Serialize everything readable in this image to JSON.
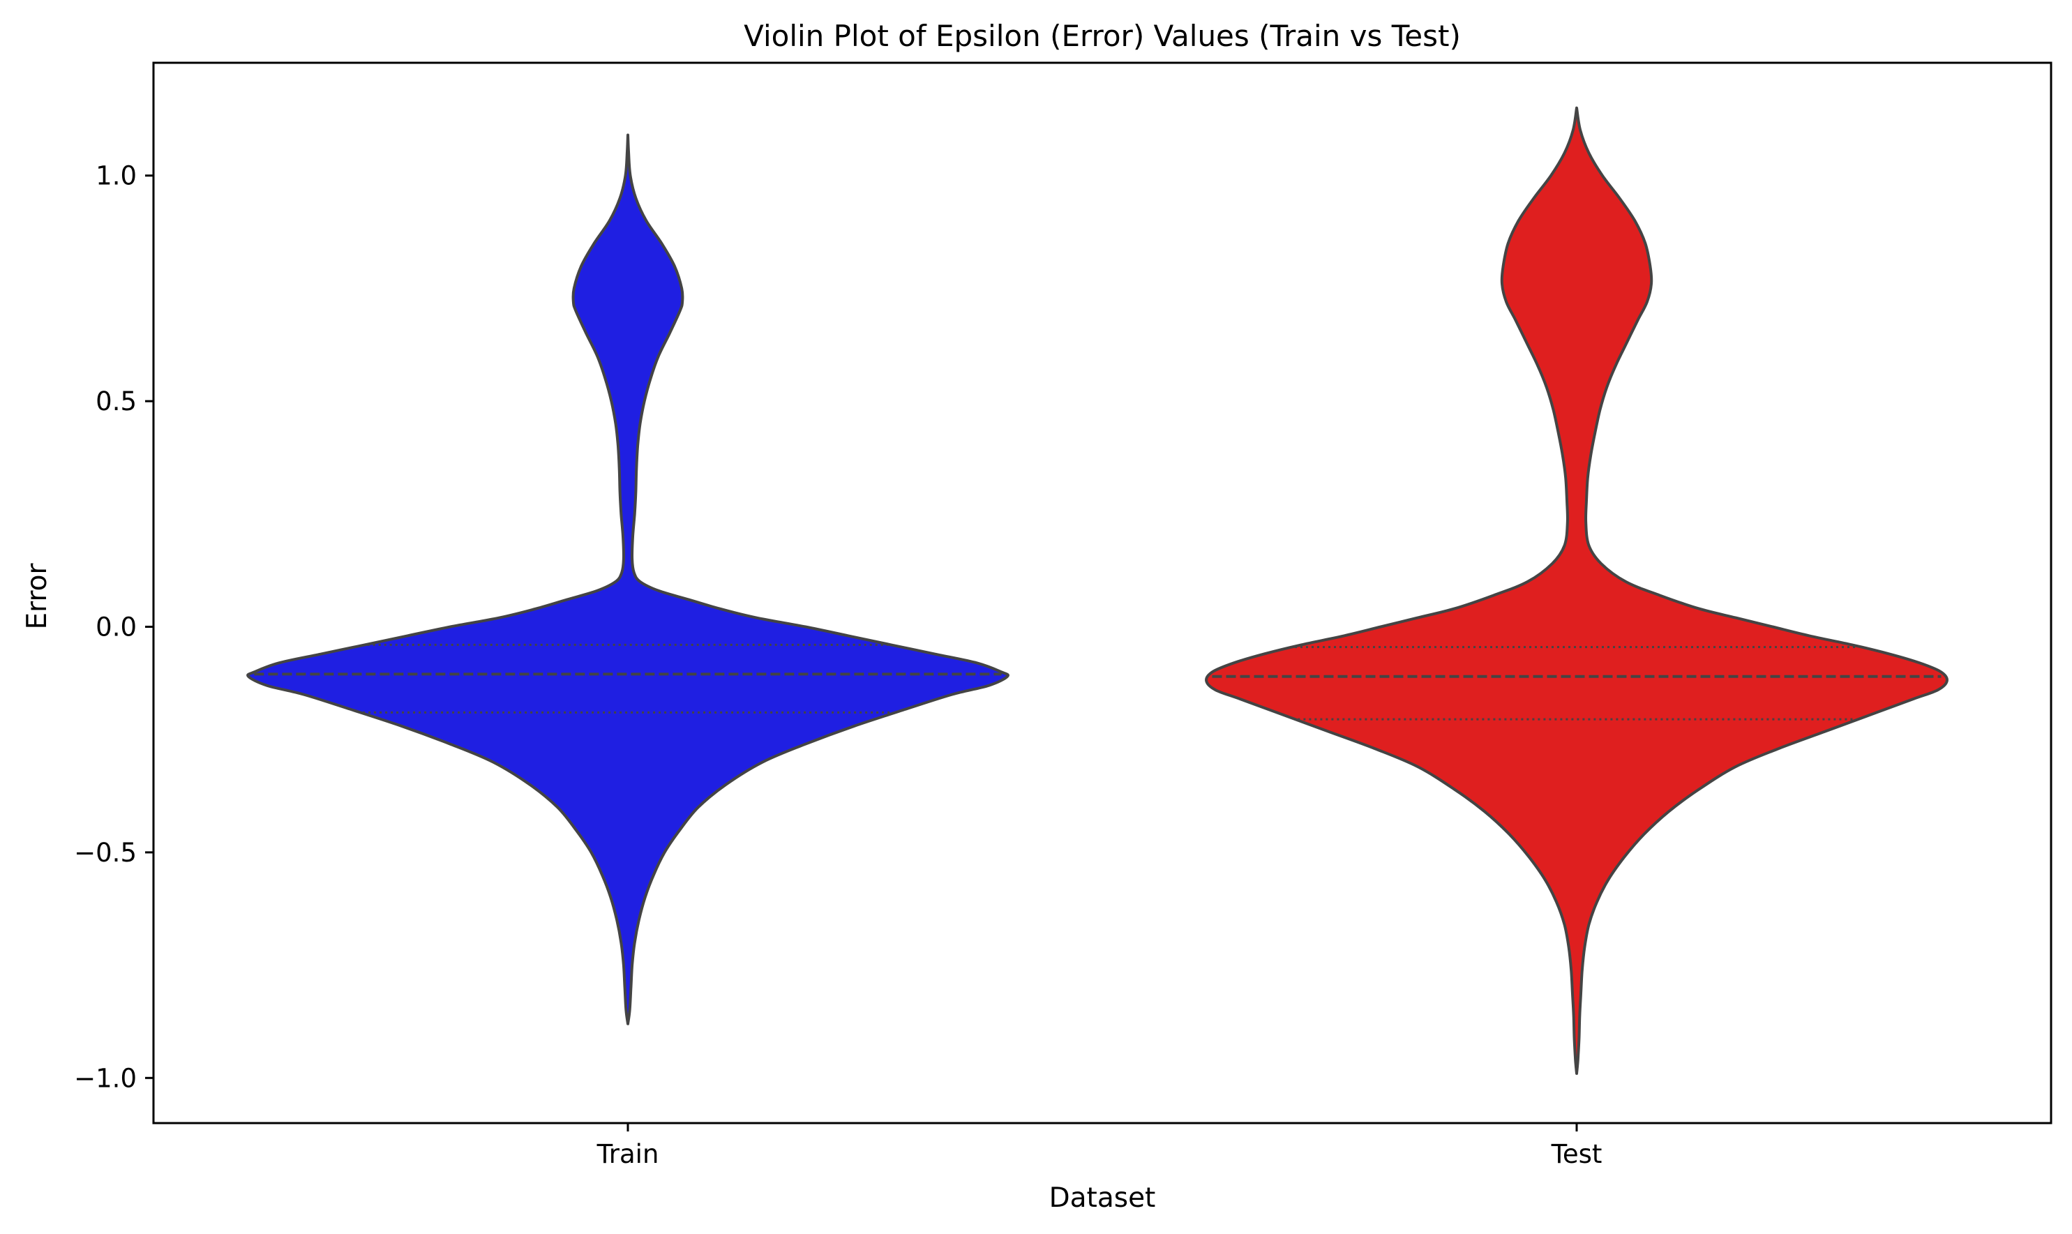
{
  "chart_data": {
    "type": "violin",
    "title": "Violin Plot of Epsilon (Error) Values (Train vs Test)",
    "xlabel": "Dataset",
    "ylabel": "Error",
    "ylim": [
      -1.1,
      1.25
    ],
    "yticks": [
      1.0,
      0.5,
      0.0,
      -0.5,
      -1.0
    ],
    "ytick_labels": [
      "1.0",
      "0.5",
      "0.0",
      "−0.5",
      "−1.0"
    ],
    "categories": [
      "Train",
      "Test"
    ],
    "grid": false,
    "legend": "none",
    "colors": {
      "Train": "#1f1fe2",
      "Test": "#df1f1f",
      "outline": "#444444",
      "inner_lines": "#444444"
    },
    "series": [
      {
        "category": "Train",
        "min": -0.88,
        "max": 1.09,
        "quartiles": [
          -0.19,
          -0.105,
          -0.04
        ],
        "density_profile": [
          [
            1.09,
            0.0
          ],
          [
            1.05,
            0.012
          ],
          [
            1.0,
            0.04
          ],
          [
            0.95,
            0.13
          ],
          [
            0.9,
            0.3
          ],
          [
            0.85,
            0.55
          ],
          [
            0.8,
            0.76
          ],
          [
            0.75,
            0.88
          ],
          [
            0.72,
            0.89
          ],
          [
            0.7,
            0.85
          ],
          [
            0.65,
            0.68
          ],
          [
            0.6,
            0.5
          ],
          [
            0.55,
            0.37
          ],
          [
            0.5,
            0.27
          ],
          [
            0.45,
            0.2
          ],
          [
            0.4,
            0.16
          ],
          [
            0.35,
            0.14
          ],
          [
            0.3,
            0.13
          ],
          [
            0.25,
            0.11
          ],
          [
            0.2,
            0.08
          ],
          [
            0.15,
            0.07
          ],
          [
            0.12,
            0.1
          ],
          [
            0.1,
            0.2
          ],
          [
            0.08,
            0.5
          ],
          [
            0.06,
            1.0
          ],
          [
            0.04,
            1.5
          ],
          [
            0.02,
            2.1
          ],
          [
            0.0,
            2.9
          ],
          [
            -0.02,
            3.6
          ],
          [
            -0.04,
            4.3
          ],
          [
            -0.06,
            5.0
          ],
          [
            -0.08,
            5.7
          ],
          [
            -0.1,
            6.1
          ],
          [
            -0.11,
            6.2
          ],
          [
            -0.13,
            5.9
          ],
          [
            -0.15,
            5.3
          ],
          [
            -0.18,
            4.6
          ],
          [
            -0.22,
            3.7
          ],
          [
            -0.26,
            2.9
          ],
          [
            -0.3,
            2.2
          ],
          [
            -0.35,
            1.6
          ],
          [
            -0.4,
            1.15
          ],
          [
            -0.45,
            0.85
          ],
          [
            -0.5,
            0.6
          ],
          [
            -0.55,
            0.42
          ],
          [
            -0.6,
            0.28
          ],
          [
            -0.65,
            0.18
          ],
          [
            -0.7,
            0.11
          ],
          [
            -0.75,
            0.07
          ],
          [
            -0.8,
            0.05
          ],
          [
            -0.85,
            0.03
          ],
          [
            -0.88,
            0.0
          ]
        ]
      },
      {
        "category": "Test",
        "min": -0.99,
        "max": 1.15,
        "quartiles": [
          -0.205,
          -0.11,
          -0.045
        ],
        "density_profile": [
          [
            1.15,
            0.0
          ],
          [
            1.1,
            0.06
          ],
          [
            1.05,
            0.2
          ],
          [
            1.0,
            0.42
          ],
          [
            0.95,
            0.7
          ],
          [
            0.9,
            0.95
          ],
          [
            0.85,
            1.12
          ],
          [
            0.8,
            1.2
          ],
          [
            0.76,
            1.22
          ],
          [
            0.72,
            1.15
          ],
          [
            0.68,
            1.0
          ],
          [
            0.63,
            0.82
          ],
          [
            0.58,
            0.64
          ],
          [
            0.53,
            0.49
          ],
          [
            0.48,
            0.38
          ],
          [
            0.43,
            0.3
          ],
          [
            0.38,
            0.23
          ],
          [
            0.33,
            0.18
          ],
          [
            0.28,
            0.16
          ],
          [
            0.23,
            0.15
          ],
          [
            0.18,
            0.2
          ],
          [
            0.14,
            0.4
          ],
          [
            0.1,
            0.8
          ],
          [
            0.07,
            1.35
          ],
          [
            0.04,
            2.0
          ],
          [
            0.02,
            2.6
          ],
          [
            0.0,
            3.2
          ],
          [
            -0.02,
            3.8
          ],
          [
            -0.04,
            4.5
          ],
          [
            -0.06,
            5.1
          ],
          [
            -0.08,
            5.6
          ],
          [
            -0.1,
            5.95
          ],
          [
            -0.12,
            6.05
          ],
          [
            -0.14,
            5.9
          ],
          [
            -0.16,
            5.5
          ],
          [
            -0.19,
            4.9
          ],
          [
            -0.23,
            4.1
          ],
          [
            -0.27,
            3.3
          ],
          [
            -0.31,
            2.6
          ],
          [
            -0.36,
            2.0
          ],
          [
            -0.41,
            1.5
          ],
          [
            -0.46,
            1.1
          ],
          [
            -0.51,
            0.78
          ],
          [
            -0.56,
            0.52
          ],
          [
            -0.61,
            0.33
          ],
          [
            -0.66,
            0.2
          ],
          [
            -0.71,
            0.13
          ],
          [
            -0.76,
            0.09
          ],
          [
            -0.81,
            0.07
          ],
          [
            -0.86,
            0.05
          ],
          [
            -0.91,
            0.04
          ],
          [
            -0.96,
            0.02
          ],
          [
            -0.99,
            0.0
          ]
        ]
      }
    ]
  }
}
